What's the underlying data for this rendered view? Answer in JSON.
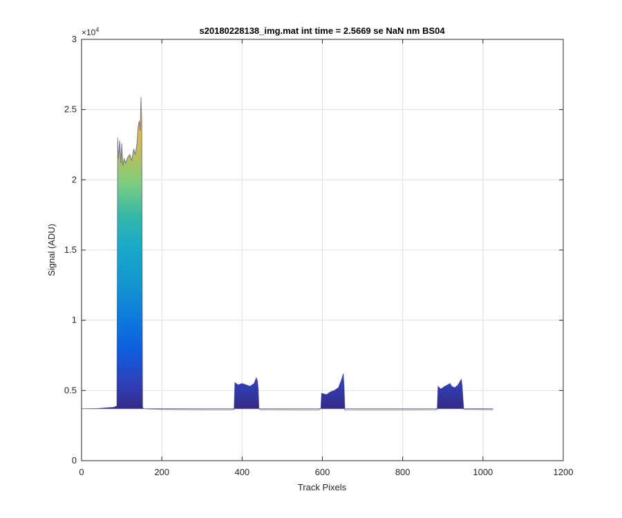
{
  "chart_data": {
    "type": "area",
    "title": "s20180228138_img.mat int time = 2.5669 se  NaN nm BS04",
    "xlabel": "Track Pixels",
    "ylabel": "Signal (ADU)",
    "xlim": [
      0,
      1200
    ],
    "ylim": [
      0,
      30000
    ],
    "x_ticks": [
      0,
      200,
      400,
      600,
      800,
      1000,
      1200
    ],
    "y_ticks": [
      0,
      5000,
      10000,
      15000,
      20000,
      25000,
      30000
    ],
    "x_tick_labels": [
      "0",
      "200",
      "400",
      "600",
      "800",
      "1000",
      "1200"
    ],
    "y_tick_labels": [
      "0",
      "0.5",
      "1",
      "1.5",
      "2",
      "2.5",
      "3"
    ],
    "y_exponent_label": "×10",
    "y_exponent_power": "4",
    "grid": true,
    "baseline": 3700,
    "colormap": "parula (per-row overlay, low rows blue, high rows yellow)",
    "colors": {
      "low": "#352a87",
      "blue": "#0f5cdd",
      "cyan": "#1aa9c9",
      "green": "#7bcd7f",
      "high": "#f9fb0e",
      "axis": "#262626",
      "grid": "#e0e0e0"
    },
    "series": [
      {
        "x": [
          0,
          40,
          80,
          88,
          90,
          92,
          95,
          98,
          100,
          103,
          106,
          110,
          115,
          120,
          125,
          130,
          134,
          138,
          141,
          144,
          146,
          148,
          150,
          152,
          155,
          170,
          200,
          300,
          375,
          380,
          382,
          390,
          400,
          410,
          420,
          430,
          435,
          438,
          440,
          442,
          446,
          480,
          550,
          590,
          596,
          598,
          610,
          620,
          630,
          640,
          648,
          652,
          654,
          656,
          660,
          700,
          800,
          880,
          886,
          888,
          895,
          905,
          912,
          918,
          922,
          930,
          938,
          943,
          946,
          948,
          952,
          1000,
          1024
        ],
        "y": [
          3700,
          3720,
          3800,
          3900,
          23000,
          21500,
          22800,
          21200,
          22600,
          21000,
          21500,
          21200,
          21600,
          21800,
          21400,
          22200,
          21800,
          22600,
          23800,
          24200,
          23500,
          25900,
          24200,
          3800,
          3700,
          3680,
          3650,
          3620,
          3620,
          3650,
          5550,
          5400,
          5500,
          5400,
          5300,
          5500,
          5900,
          5700,
          5200,
          3700,
          3620,
          3620,
          3610,
          3610,
          3700,
          4800,
          4700,
          4900,
          5000,
          5200,
          5800,
          6200,
          5300,
          3600,
          3610,
          3610,
          3610,
          3620,
          3650,
          5300,
          5100,
          5300,
          5400,
          5500,
          5300,
          5200,
          5400,
          5650,
          5800,
          5400,
          3650,
          3640,
          3630
        ]
      }
    ]
  }
}
